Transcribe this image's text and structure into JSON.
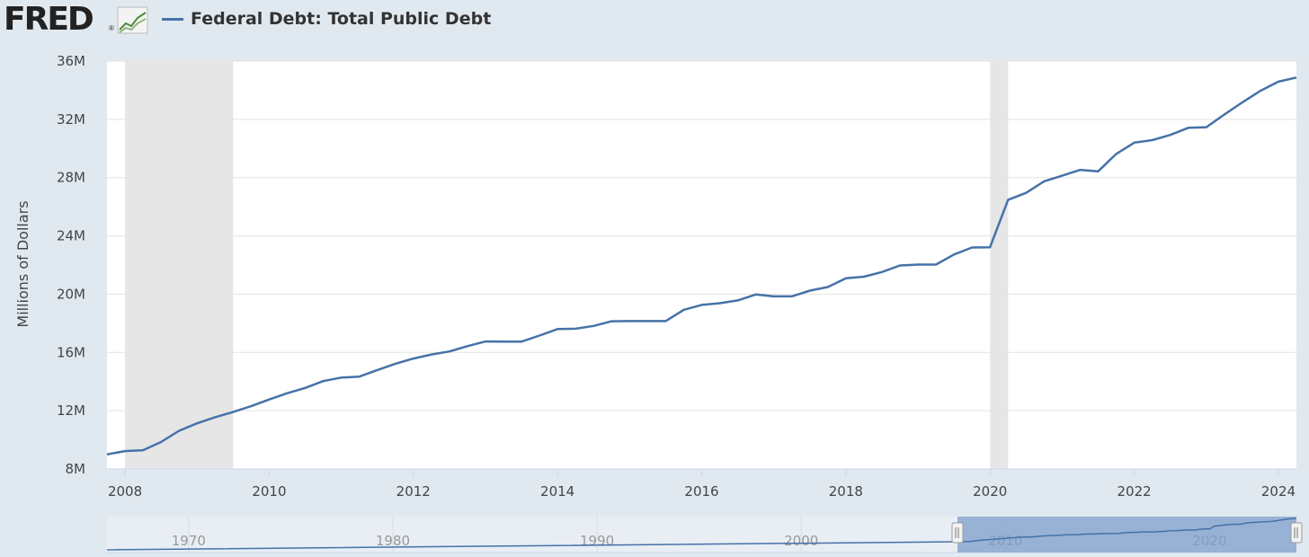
{
  "header": {
    "logo_text": "FRED",
    "logo_reg": "®",
    "legend_label": "Federal Debt: Total Public Debt",
    "series_color": "#4572a7"
  },
  "chart_data": {
    "type": "line",
    "title": "",
    "ylabel": "Millions of Dollars",
    "xlabel": "",
    "ylim": [
      8000000,
      36000000
    ],
    "xlim": [
      2007.75,
      2024.25
    ],
    "yticks": [
      8000000,
      12000000,
      16000000,
      20000000,
      24000000,
      28000000,
      32000000,
      36000000
    ],
    "ytick_labels": [
      "8M",
      "12M",
      "16M",
      "20M",
      "24M",
      "28M",
      "32M",
      "36M"
    ],
    "xticks": [
      2008,
      2010,
      2012,
      2014,
      2016,
      2018,
      2020,
      2022,
      2024
    ],
    "xtick_labels": [
      "2008",
      "2010",
      "2012",
      "2014",
      "2016",
      "2018",
      "2020",
      "2022",
      "2024"
    ],
    "recessions": [
      [
        2008.0,
        2009.5
      ],
      [
        2020.0,
        2020.25
      ]
    ],
    "grid": true,
    "series": [
      {
        "name": "Federal Debt: Total Public Debt",
        "color": "#4572a7",
        "x": [
          2007.75,
          2008.0,
          2008.25,
          2008.5,
          2008.75,
          2009.0,
          2009.25,
          2009.5,
          2009.75,
          2010.0,
          2010.25,
          2010.5,
          2010.75,
          2011.0,
          2011.25,
          2011.5,
          2011.75,
          2012.0,
          2012.25,
          2012.5,
          2012.75,
          2013.0,
          2013.25,
          2013.5,
          2013.75,
          2014.0,
          2014.25,
          2014.5,
          2014.75,
          2015.0,
          2015.25,
          2015.5,
          2015.75,
          2016.0,
          2016.25,
          2016.5,
          2016.75,
          2017.0,
          2017.25,
          2017.5,
          2017.75,
          2018.0,
          2018.25,
          2018.5,
          2018.75,
          2019.0,
          2019.25,
          2019.5,
          2019.75,
          2020.0,
          2020.25,
          2020.5,
          2020.75,
          2021.0,
          2021.25,
          2021.5,
          2021.75,
          2022.0,
          2022.25,
          2022.5,
          2022.75,
          2023.0,
          2023.25,
          2023.5,
          2023.75,
          2024.0,
          2024.25
        ],
        "values": [
          9000000,
          9230000,
          9290000,
          9850000,
          10620000,
          11130000,
          11550000,
          11910000,
          12310000,
          12770000,
          13200000,
          13560000,
          14030000,
          14270000,
          14340000,
          14790000,
          15220000,
          15580000,
          15860000,
          16070000,
          16430000,
          16750000,
          16740000,
          16740000,
          17160000,
          17600000,
          17630000,
          17820000,
          18140000,
          18150000,
          18150000,
          18150000,
          18920000,
          19260000,
          19380000,
          19570000,
          19980000,
          19850000,
          19850000,
          20240000,
          20490000,
          21090000,
          21200000,
          21520000,
          21970000,
          22030000,
          22030000,
          22720000,
          23200000,
          23220000,
          26480000,
          26950000,
          27750000,
          28130000,
          28530000,
          28430000,
          29620000,
          30400000,
          30570000,
          30930000,
          31420000,
          31460000,
          32330000,
          33170000,
          33960000,
          34590000,
          34870000
        ]
      }
    ],
    "navigator": {
      "tick_labels": [
        "1970",
        "1980",
        "1990",
        "2000",
        "2010",
        "2020"
      ]
    }
  }
}
